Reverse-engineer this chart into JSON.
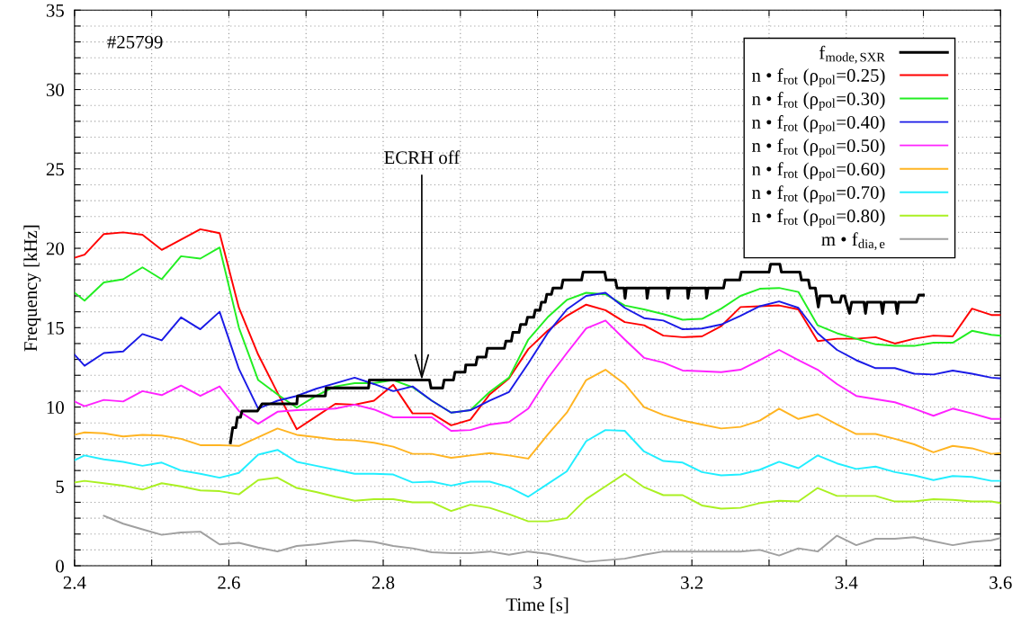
{
  "chart_data": {
    "type": "line",
    "xlabel": "Time [s]",
    "ylabel": "Frequency [kHz]",
    "xlim": [
      2.4,
      3.6
    ],
    "ylim": [
      0,
      35
    ],
    "xticks": [
      2.4,
      {
        "value": 2.5,
        "label": null
      },
      2.6,
      {
        "value": 2.7,
        "label": null
      },
      2.8,
      {
        "value": 2.9,
        "label": null
      },
      3,
      {
        "value": 3.1,
        "label": null
      },
      3.2,
      {
        "value": 3.3,
        "label": null
      },
      3.4,
      {
        "value": 3.5,
        "label": null
      },
      3.6
    ],
    "yticks": [
      0,
      {
        "value": 1,
        "label": null
      },
      {
        "value": 2,
        "label": null
      },
      {
        "value": 3,
        "label": null
      },
      {
        "value": 4,
        "label": null
      },
      5,
      {
        "value": 6,
        "label": null
      },
      {
        "value": 7,
        "label": null
      },
      {
        "value": 8,
        "label": null
      },
      {
        "value": 9,
        "label": null
      },
      10,
      {
        "value": 11,
        "label": null
      },
      {
        "value": 12,
        "label": null
      },
      {
        "value": 13,
        "label": null
      },
      {
        "value": 14,
        "label": null
      },
      15,
      {
        "value": 16,
        "label": null
      },
      {
        "value": 17,
        "label": null
      },
      {
        "value": 18,
        "label": null
      },
      {
        "value": 19,
        "label": null
      },
      20,
      {
        "value": 21,
        "label": null
      },
      {
        "value": 22,
        "label": null
      },
      {
        "value": 23,
        "label": null
      },
      {
        "value": 24,
        "label": null
      },
      25,
      {
        "value": 26,
        "label": null
      },
      {
        "value": 27,
        "label": null
      },
      {
        "value": 28,
        "label": null
      },
      {
        "value": 29,
        "label": null
      },
      30,
      {
        "value": 31,
        "label": null
      },
      {
        "value": 32,
        "label": null
      },
      {
        "value": 33,
        "label": null
      },
      {
        "value": 34,
        "label": null
      },
      35
    ],
    "grid": true,
    "legend": "top right",
    "marker": "none",
    "line_style": "solid",
    "x": [
      2.4,
      2.413,
      2.438,
      2.463,
      2.488,
      2.513,
      2.538,
      2.563,
      2.588,
      2.613,
      2.638,
      2.663,
      2.688,
      2.713,
      2.738,
      2.763,
      2.788,
      2.813,
      2.838,
      2.863,
      2.888,
      2.913,
      2.938,
      2.963,
      2.988,
      3.013,
      3.038,
      3.063,
      3.088,
      3.113,
      3.138,
      3.163,
      3.188,
      3.213,
      3.238,
      3.263,
      3.288,
      3.313,
      3.338,
      3.363,
      3.388,
      3.413,
      3.438,
      3.463,
      3.488,
      3.513,
      3.538,
      3.563,
      3.588,
      3.6
    ],
    "series": [
      {
        "name": "f$_{mode,SXR}$",
        "color": "#000000",
        "x": [
          2.602,
          2.605,
          2.609,
          2.611,
          2.615,
          2.617,
          2.637,
          2.643,
          2.688,
          2.689,
          2.725,
          2.726,
          2.781,
          2.782,
          2.86,
          2.862,
          2.877,
          2.879,
          2.891,
          2.893,
          2.906,
          2.907,
          2.92,
          2.922,
          2.933,
          2.935,
          2.957,
          2.959,
          2.966,
          2.968,
          2.976,
          2.978,
          2.985,
          2.987,
          2.995,
          2.997,
          3.003,
          3.005,
          3.01,
          3.012,
          3.018,
          3.02,
          3.031,
          3.033,
          3.057,
          3.059,
          3.087,
          3.089,
          3.101,
          3.103,
          3.112,
          3.1134,
          3.115,
          3.141,
          3.142,
          3.144,
          3.168,
          3.169,
          3.171,
          3.194,
          3.195,
          3.197,
          3.218,
          3.219,
          3.221,
          3.241,
          3.243,
          3.262,
          3.264,
          3.3,
          3.302,
          3.314,
          3.316,
          3.34,
          3.342,
          3.351,
          3.353,
          3.36,
          3.3638,
          3.366,
          3.38,
          3.382,
          3.392,
          3.394,
          3.398,
          3.4,
          3.4043,
          3.407,
          3.423,
          3.425,
          3.427,
          3.445,
          3.447,
          3.449,
          3.464,
          3.466,
          3.468,
          3.491,
          3.494,
          3.5
        ],
        "values": [
          7.75,
          8.7,
          8.7,
          9.35,
          9.35,
          9.75,
          9.75,
          10.2,
          10.2,
          10.7,
          10.7,
          11.2,
          11.2,
          11.7,
          11.7,
          11.2,
          11.2,
          11.7,
          11.7,
          12.2,
          12.2,
          12.65,
          12.65,
          13.15,
          13.15,
          13.7,
          13.7,
          14.15,
          14.15,
          14.7,
          14.7,
          15.2,
          15.2,
          15.65,
          15.65,
          16.1,
          16.1,
          16.6,
          16.6,
          17.1,
          17.1,
          17.5,
          17.5,
          18.0,
          18.0,
          18.5,
          18.5,
          18.0,
          18.0,
          17.5,
          17.5,
          16.85,
          17.5,
          17.5,
          16.85,
          17.5,
          17.5,
          16.85,
          17.5,
          17.5,
          16.85,
          17.5,
          17.5,
          16.85,
          17.5,
          17.5,
          18.0,
          18.0,
          18.5,
          18.5,
          19.0,
          19.0,
          18.5,
          18.5,
          18.0,
          18.0,
          17.5,
          17.5,
          16.3,
          17.0,
          17.0,
          16.6,
          16.6,
          17.0,
          17.0,
          16.6,
          15.9,
          16.6,
          16.6,
          15.9,
          16.6,
          16.6,
          15.9,
          16.6,
          16.6,
          15.9,
          16.6,
          16.6,
          17.05,
          17.05
        ]
      },
      {
        "name": "n • f$_{rot}$ (ρ$_{pol}$=0.25)",
        "color": "#ff0000",
        "values": [
          19.4,
          19.6,
          20.9,
          21.0,
          20.85,
          19.9,
          20.55,
          21.2,
          20.95,
          16.25,
          13.3,
          10.9,
          8.6,
          9.4,
          10.2,
          10.15,
          10.4,
          11.4,
          9.6,
          9.6,
          8.85,
          9.2,
          10.8,
          11.8,
          13.65,
          14.8,
          15.75,
          16.45,
          16.1,
          15.35,
          15.15,
          14.5,
          14.4,
          14.45,
          15.1,
          16.3,
          16.35,
          16.4,
          16.15,
          14.15,
          14.3,
          14.3,
          14.4,
          14.0,
          14.3,
          14.5,
          14.45,
          16.2,
          15.8,
          15.8
        ]
      },
      {
        "name": "n • f$_{rot}$ (ρ$_{pol}$=0.30)",
        "color": "#22ee22",
        "values": [
          17.2,
          16.7,
          17.85,
          18.05,
          18.8,
          18.05,
          19.5,
          19.35,
          20.05,
          15.0,
          11.7,
          10.8,
          9.96,
          10.7,
          11.3,
          11.5,
          11.5,
          11.7,
          11.25,
          10.4,
          9.65,
          9.8,
          10.95,
          11.85,
          14.25,
          15.65,
          16.75,
          17.2,
          17.1,
          16.4,
          16.15,
          15.85,
          15.5,
          15.55,
          16.2,
          17.0,
          17.45,
          17.5,
          17.25,
          15.15,
          14.65,
          14.3,
          13.95,
          13.85,
          13.85,
          14.05,
          14.05,
          14.8,
          14.55,
          14.5
        ]
      },
      {
        "name": "n • f$_{rot}$ (ρ$_{pol}$=0.40)",
        "color": "#1a1ae6",
        "values": [
          13.3,
          12.6,
          13.4,
          13.5,
          14.6,
          14.2,
          15.65,
          14.9,
          16.0,
          12.4,
          9.9,
          10.4,
          10.7,
          11.15,
          11.5,
          11.85,
          11.45,
          11.0,
          11.3,
          10.4,
          9.65,
          9.8,
          10.4,
          10.95,
          12.75,
          14.65,
          16.15,
          17.0,
          17.2,
          16.25,
          15.6,
          15.45,
          14.9,
          14.95,
          15.2,
          15.75,
          16.35,
          16.65,
          16.25,
          14.65,
          13.6,
          12.95,
          12.45,
          12.45,
          12.1,
          12.05,
          12.3,
          12.1,
          11.85,
          11.8
        ]
      },
      {
        "name": "n • f$_{rot}$ (ρ$_{pol}$=0.50)",
        "color": "#ff22ff",
        "values": [
          10.35,
          10.05,
          10.45,
          10.35,
          11.0,
          10.75,
          11.35,
          10.7,
          11.3,
          9.75,
          8.95,
          9.7,
          9.8,
          9.85,
          9.9,
          10.15,
          9.85,
          9.35,
          9.35,
          9.35,
          8.5,
          8.55,
          8.9,
          9.05,
          9.9,
          11.8,
          13.4,
          14.95,
          15.45,
          14.25,
          13.1,
          12.8,
          12.3,
          12.25,
          12.2,
          12.35,
          12.95,
          13.6,
          12.95,
          12.35,
          11.45,
          10.7,
          10.5,
          10.3,
          9.9,
          9.45,
          9.9,
          9.6,
          9.25,
          9.25
        ]
      },
      {
        "name": "n • f$_{rot}$ (ρ$_{pol}$=0.60)",
        "color": "#ffb422",
        "values": [
          8.25,
          8.4,
          8.35,
          8.15,
          8.25,
          8.2,
          8.0,
          7.6,
          7.6,
          7.55,
          8.1,
          8.65,
          8.25,
          8.1,
          7.95,
          7.9,
          7.75,
          7.5,
          7.05,
          7.05,
          6.8,
          6.95,
          7.1,
          6.95,
          6.75,
          8.25,
          9.65,
          11.7,
          12.35,
          11.45,
          10.0,
          9.5,
          9.15,
          8.9,
          8.65,
          8.75,
          9.15,
          9.9,
          9.25,
          9.55,
          8.9,
          8.3,
          8.3,
          8.0,
          7.65,
          7.15,
          7.55,
          7.4,
          7.05,
          7.1
        ]
      },
      {
        "name": "n • f$_{rot}$ (ρ$_{pol}$=0.70)",
        "color": "#22eeff",
        "values": [
          6.65,
          6.95,
          6.7,
          6.55,
          6.3,
          6.5,
          6.0,
          5.8,
          5.55,
          5.85,
          7.0,
          7.3,
          6.55,
          6.3,
          6.05,
          5.8,
          5.8,
          5.75,
          5.25,
          5.3,
          5.05,
          5.3,
          5.3,
          4.95,
          4.35,
          5.15,
          5.95,
          7.85,
          8.55,
          8.5,
          7.2,
          6.6,
          6.5,
          5.9,
          5.7,
          5.75,
          6.05,
          6.55,
          6.15,
          6.95,
          6.45,
          6.1,
          6.25,
          5.9,
          5.7,
          5.4,
          5.65,
          5.6,
          5.35,
          5.35
        ]
      },
      {
        "name": "n • f$_{rot}$ (ρ$_{pol}$=0.80)",
        "color": "#aaf022",
        "values": [
          5.25,
          5.35,
          5.2,
          5.05,
          4.8,
          5.2,
          5.0,
          4.75,
          4.7,
          4.5,
          5.4,
          5.55,
          4.9,
          4.65,
          4.35,
          4.1,
          4.2,
          4.2,
          4.0,
          4.0,
          3.45,
          3.85,
          3.65,
          3.25,
          2.8,
          2.8,
          3.0,
          4.2,
          5.0,
          5.8,
          4.95,
          4.45,
          4.45,
          3.8,
          3.6,
          3.65,
          3.95,
          4.1,
          4.05,
          4.9,
          4.4,
          4.4,
          4.4,
          4.05,
          4.05,
          4.2,
          4.15,
          4.05,
          4.05,
          3.95
        ]
      },
      {
        "name": "m • f$_{dia,e}$",
        "color": "#a0a0a0",
        "values": [
          null,
          null,
          3.15,
          2.65,
          2.3,
          1.95,
          2.1,
          2.15,
          1.35,
          1.45,
          1.15,
          0.9,
          1.25,
          1.35,
          1.5,
          1.6,
          1.5,
          1.25,
          1.1,
          0.85,
          0.8,
          0.8,
          0.9,
          0.7,
          0.9,
          0.75,
          0.5,
          0.25,
          0.35,
          0.45,
          0.7,
          0.9,
          0.9,
          0.9,
          0.9,
          0.9,
          1.0,
          0.65,
          1.1,
          0.9,
          1.9,
          1.3,
          1.7,
          1.7,
          1.8,
          1.55,
          1.3,
          1.5,
          1.6,
          1.75
        ]
      }
    ],
    "annotations": [
      "#25799",
      {
        "text": "ECRH off",
        "x": 2.85,
        "y": 11.7
      }
    ]
  }
}
